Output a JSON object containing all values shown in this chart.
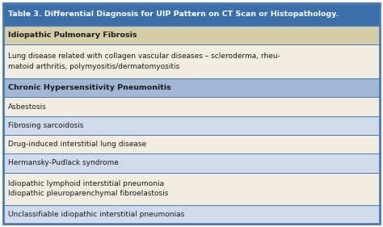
{
  "title": "Table 3. Differential Diagnosis for UIP Pattern on CT Scan or Histopathology.",
  "title_bg": "#3a6faa",
  "title_color": "#ffffff",
  "rows": [
    {
      "text": "Idiopathic Pulmonary Fibrosis",
      "bold": true,
      "bg": "#d4cda8",
      "color": "#1a1a1a"
    },
    {
      "text": "Lung disease related with collagen vascular diseases – scleroderma, rheu-\nmatoid arthritis, polymyositis/dermatomyositis",
      "bold": false,
      "bg": "#f0ede0",
      "color": "#1a1a1a"
    },
    {
      "text": "Chronic Hypersensitivity Pneumonitis",
      "bold": true,
      "bg": "#a0b8d4",
      "color": "#1a1a1a"
    },
    {
      "text": "Asbestosis",
      "bold": false,
      "bg": "#f0ede0",
      "color": "#1a1a1a"
    },
    {
      "text": "Fibrosing sarcoidosis",
      "bold": false,
      "bg": "#d0dcec",
      "color": "#1a1a1a"
    },
    {
      "text": "Drug-induced interstitial lung disease",
      "bold": false,
      "bg": "#f0ede0",
      "color": "#1a1a1a"
    },
    {
      "text": "Hermansky-Pudlack syndrome",
      "bold": false,
      "bg": "#d0dcec",
      "color": "#1a1a1a"
    },
    {
      "text": "Idiopathic lymphoid interstitial pneumonia\nIdiopathic pleuroparenchymal fibroelastosis",
      "bold": false,
      "bg": "#f0ede0",
      "color": "#1a1a1a"
    },
    {
      "text": "Unclassifiable idiopathic interstitial pneumonias",
      "bold": false,
      "bg": "#d0dcec",
      "color": "#1a1a1a"
    }
  ],
  "border_color": "#4a7ab5",
  "outer_border_color": "#4a7ab5",
  "figsize": [
    4.74,
    2.81
  ],
  "dpi": 100
}
